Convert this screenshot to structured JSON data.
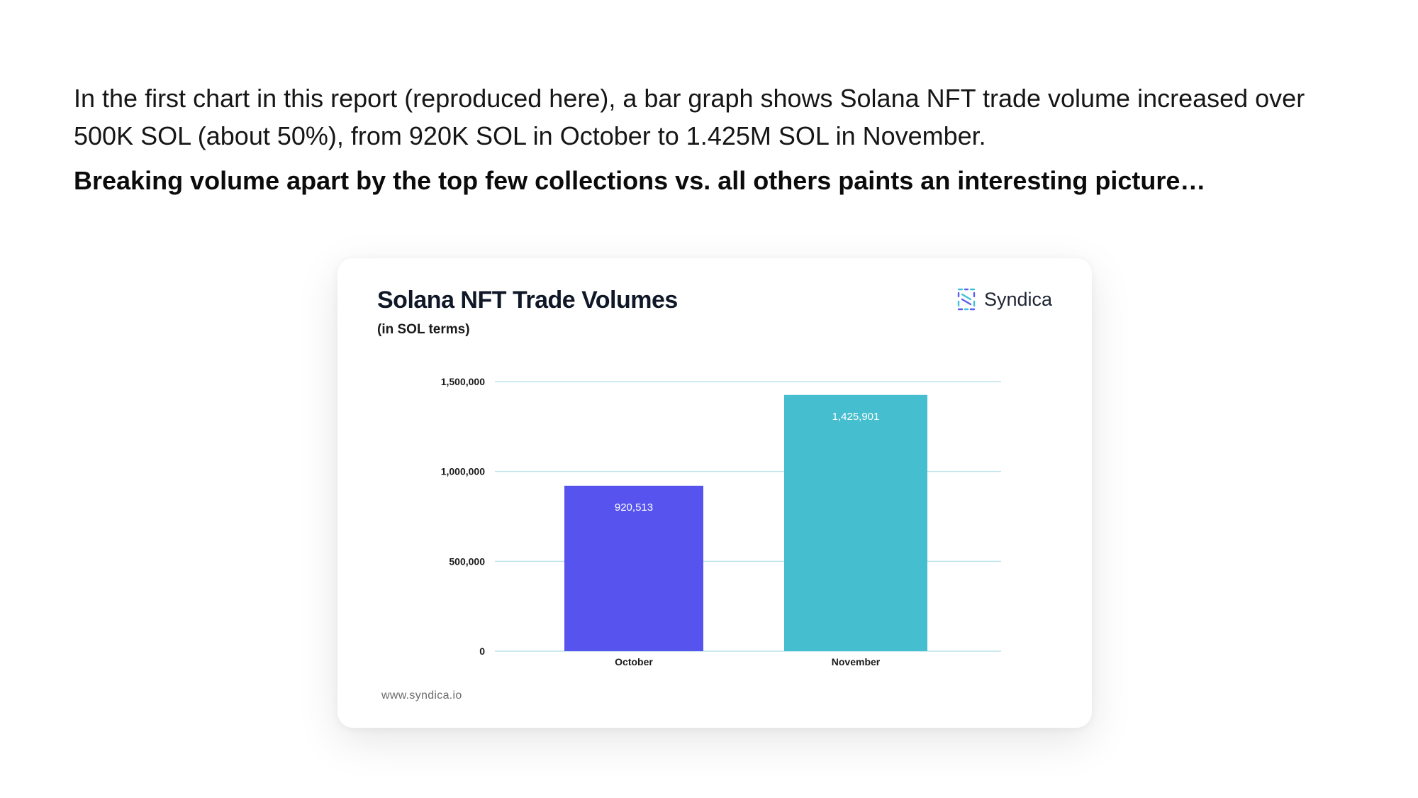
{
  "article": {
    "paragraph": "In the first chart in this report (reproduced here), a bar graph shows Solana NFT trade volume increased over 500K SOL (about 50%), from 920K SOL in October to 1.425M SOL in November.",
    "lead": "Breaking volume apart by the top few collections vs. all others paints an interesting picture…"
  },
  "card": {
    "title": "Solana NFT Trade Volumes",
    "subtitle": "(in SOL terms)",
    "brand": "Syndica",
    "brand_icon": "syndica-logo-icon",
    "website": "www.syndica.io"
  },
  "chart_data": {
    "type": "bar",
    "title": "Solana NFT Trade Volumes",
    "subtitle": "(in SOL terms)",
    "categories": [
      "October",
      "November"
    ],
    "values": [
      920513,
      1425901
    ],
    "value_labels": [
      "920,513",
      "1,425,901"
    ],
    "colors": [
      "#5753EF",
      "#45BECF"
    ],
    "ylim": [
      0,
      1500000
    ],
    "yticks": [
      0,
      500000,
      1000000,
      1500000
    ],
    "ytick_labels": [
      "0",
      "500,000",
      "1,000,000",
      "1,500,000"
    ],
    "grid": true,
    "grid_color": "#bfe3ea",
    "xlabel": "",
    "ylabel": "",
    "legend": false
  }
}
